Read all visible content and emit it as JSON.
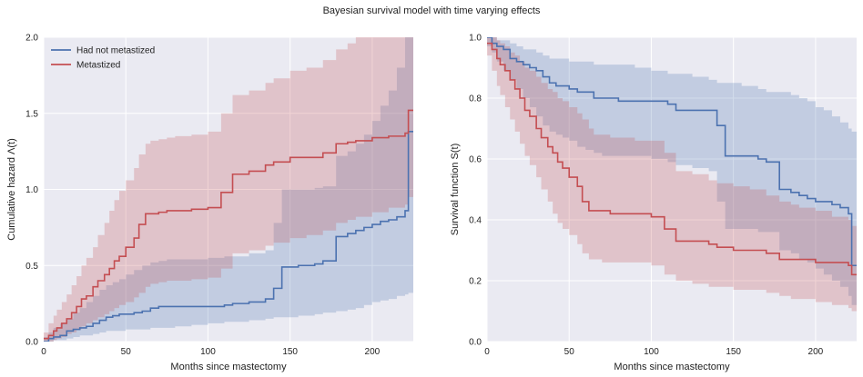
{
  "figure": {
    "title": "Bayesian survival model with time varying effects"
  },
  "colors": {
    "background": "#EAEAF2",
    "grid": "#FFFFFF",
    "blue": "#4C72B0",
    "red": "#C44E52"
  },
  "chart_data": [
    {
      "type": "line",
      "drawstyle": "steps-post",
      "title": "",
      "xlabel": "Months since mastectomy",
      "ylabel": "Cumulative hazard Λ(t)",
      "xlim": [
        0,
        225
      ],
      "ylim": [
        0,
        2.0
      ],
      "xticks": [
        0,
        50,
        100,
        150,
        200
      ],
      "yticks": [
        0.0,
        0.5,
        1.0,
        1.5,
        2.0
      ],
      "ytick_labels": [
        "0.0",
        "0.5",
        "1.0",
        "1.5",
        "2.0"
      ],
      "grid": true,
      "legend": {
        "location": "top-left",
        "entries": [
          "Had not metastized",
          "Metastized"
        ]
      },
      "series": [
        {
          "name": "Had not metastized",
          "color": "#4C72B0",
          "x": [
            0,
            3,
            6,
            10,
            14,
            18,
            22,
            26,
            30,
            34,
            38,
            42,
            46,
            50,
            55,
            60,
            65,
            70,
            75,
            80,
            90,
            100,
            110,
            115,
            125,
            135,
            140,
            145,
            155,
            165,
            170,
            178,
            185,
            190,
            195,
            200,
            205,
            210,
            215,
            220,
            222,
            225
          ],
          "y": [
            0.0,
            0.02,
            0.03,
            0.04,
            0.07,
            0.08,
            0.09,
            0.1,
            0.12,
            0.14,
            0.16,
            0.17,
            0.18,
            0.18,
            0.19,
            0.2,
            0.22,
            0.23,
            0.23,
            0.23,
            0.23,
            0.23,
            0.24,
            0.25,
            0.26,
            0.28,
            0.35,
            0.49,
            0.5,
            0.51,
            0.53,
            0.69,
            0.71,
            0.73,
            0.75,
            0.77,
            0.79,
            0.8,
            0.82,
            0.86,
            1.38,
            1.38
          ],
          "ci_lower": [
            0.0,
            0.0,
            0.01,
            0.01,
            0.02,
            0.03,
            0.04,
            0.04,
            0.05,
            0.06,
            0.07,
            0.07,
            0.07,
            0.08,
            0.08,
            0.08,
            0.09,
            0.09,
            0.09,
            0.1,
            0.11,
            0.12,
            0.13,
            0.13,
            0.14,
            0.15,
            0.16,
            0.16,
            0.17,
            0.18,
            0.19,
            0.2,
            0.21,
            0.22,
            0.24,
            0.26,
            0.27,
            0.28,
            0.3,
            0.31,
            0.32,
            0.33
          ],
          "ci_upper": [
            0.03,
            0.06,
            0.09,
            0.12,
            0.15,
            0.19,
            0.22,
            0.26,
            0.3,
            0.34,
            0.37,
            0.39,
            0.41,
            0.44,
            0.47,
            0.5,
            0.52,
            0.53,
            0.54,
            0.54,
            0.54,
            0.55,
            0.56,
            0.56,
            0.58,
            0.6,
            0.78,
            1.0,
            1.0,
            1.01,
            1.02,
            1.22,
            1.25,
            1.3,
            1.36,
            1.45,
            1.55,
            1.65,
            1.8,
            2.0,
            2.0,
            2.0
          ]
        },
        {
          "name": "Metastized",
          "color": "#C44E52",
          "x": [
            0,
            3,
            6,
            8,
            11,
            14,
            17,
            20,
            23,
            26,
            30,
            33,
            37,
            40,
            43,
            46,
            50,
            55,
            58,
            62,
            65,
            70,
            75,
            80,
            90,
            100,
            108,
            115,
            125,
            135,
            140,
            150,
            160,
            170,
            178,
            185,
            190,
            200,
            210,
            220,
            222,
            225
          ],
          "y": [
            0.02,
            0.04,
            0.07,
            0.09,
            0.12,
            0.15,
            0.19,
            0.23,
            0.28,
            0.3,
            0.36,
            0.4,
            0.44,
            0.48,
            0.53,
            0.56,
            0.62,
            0.68,
            0.77,
            0.84,
            0.84,
            0.85,
            0.86,
            0.86,
            0.87,
            0.88,
            0.98,
            1.1,
            1.12,
            1.16,
            1.18,
            1.21,
            1.21,
            1.24,
            1.3,
            1.31,
            1.32,
            1.34,
            1.35,
            1.37,
            1.52,
            1.52
          ],
          "ci_lower": [
            0.0,
            0.0,
            0.01,
            0.02,
            0.03,
            0.05,
            0.06,
            0.08,
            0.1,
            0.12,
            0.14,
            0.16,
            0.18,
            0.2,
            0.22,
            0.24,
            0.26,
            0.29,
            0.32,
            0.36,
            0.38,
            0.39,
            0.4,
            0.4,
            0.41,
            0.42,
            0.48,
            0.58,
            0.6,
            0.63,
            0.65,
            0.68,
            0.7,
            0.73,
            0.78,
            0.8,
            0.82,
            0.85,
            0.88,
            0.9,
            0.95,
            0.95
          ],
          "ci_upper": [
            0.06,
            0.12,
            0.17,
            0.21,
            0.26,
            0.31,
            0.37,
            0.43,
            0.5,
            0.55,
            0.62,
            0.7,
            0.78,
            0.86,
            0.93,
            0.99,
            1.06,
            1.14,
            1.23,
            1.3,
            1.32,
            1.33,
            1.34,
            1.35,
            1.36,
            1.38,
            1.5,
            1.62,
            1.65,
            1.7,
            1.73,
            1.78,
            1.8,
            1.85,
            1.92,
            1.96,
            2.0,
            2.0,
            2.0,
            2.0,
            2.0,
            2.0
          ]
        }
      ]
    },
    {
      "type": "line",
      "drawstyle": "steps-post",
      "title": "",
      "xlabel": "Months since mastectomy",
      "ylabel": "Survival function S(t)",
      "xlim": [
        0,
        225
      ],
      "ylim": [
        0,
        1.0
      ],
      "xticks": [
        0,
        50,
        100,
        150,
        200
      ],
      "yticks": [
        0.0,
        0.2,
        0.4,
        0.6,
        0.8,
        1.0
      ],
      "ytick_labels": [
        "0.0",
        "0.2",
        "0.4",
        "0.6",
        "0.8",
        "1.0"
      ],
      "grid": true,
      "legend": null,
      "series": [
        {
          "name": "Had not metastized",
          "color": "#4C72B0",
          "x": [
            0,
            3,
            6,
            10,
            14,
            18,
            22,
            26,
            30,
            34,
            38,
            42,
            46,
            50,
            55,
            60,
            65,
            70,
            75,
            80,
            90,
            100,
            110,
            115,
            125,
            135,
            140,
            145,
            155,
            165,
            170,
            178,
            185,
            190,
            195,
            200,
            205,
            210,
            215,
            220,
            222,
            225
          ],
          "y": [
            1.0,
            0.98,
            0.97,
            0.96,
            0.93,
            0.92,
            0.91,
            0.9,
            0.89,
            0.87,
            0.85,
            0.84,
            0.84,
            0.83,
            0.82,
            0.82,
            0.8,
            0.8,
            0.8,
            0.79,
            0.79,
            0.79,
            0.78,
            0.76,
            0.76,
            0.76,
            0.71,
            0.61,
            0.61,
            0.6,
            0.59,
            0.5,
            0.49,
            0.48,
            0.47,
            0.46,
            0.46,
            0.45,
            0.44,
            0.42,
            0.25,
            0.25
          ],
          "ci_lower": [
            0.97,
            0.95,
            0.92,
            0.89,
            0.86,
            0.83,
            0.8,
            0.77,
            0.74,
            0.71,
            0.69,
            0.68,
            0.67,
            0.66,
            0.64,
            0.63,
            0.62,
            0.61,
            0.61,
            0.61,
            0.61,
            0.6,
            0.59,
            0.58,
            0.57,
            0.56,
            0.46,
            0.37,
            0.37,
            0.36,
            0.36,
            0.3,
            0.29,
            0.27,
            0.26,
            0.24,
            0.22,
            0.2,
            0.18,
            0.15,
            0.12,
            0.1
          ],
          "ci_upper": [
            1.0,
            1.0,
            0.99,
            0.99,
            0.98,
            0.97,
            0.96,
            0.96,
            0.95,
            0.94,
            0.93,
            0.93,
            0.93,
            0.92,
            0.92,
            0.92,
            0.91,
            0.91,
            0.91,
            0.91,
            0.9,
            0.89,
            0.88,
            0.88,
            0.87,
            0.86,
            0.85,
            0.85,
            0.84,
            0.83,
            0.82,
            0.82,
            0.81,
            0.8,
            0.79,
            0.77,
            0.76,
            0.74,
            0.72,
            0.7,
            0.69,
            0.68
          ]
        },
        {
          "name": "Metastized",
          "color": "#C44E52",
          "x": [
            0,
            3,
            6,
            8,
            11,
            14,
            17,
            20,
            23,
            26,
            30,
            33,
            37,
            40,
            43,
            46,
            50,
            55,
            58,
            62,
            65,
            70,
            75,
            80,
            90,
            100,
            108,
            115,
            125,
            135,
            140,
            150,
            160,
            170,
            178,
            185,
            190,
            200,
            210,
            220,
            222,
            225
          ],
          "y": [
            0.98,
            0.96,
            0.93,
            0.91,
            0.89,
            0.86,
            0.83,
            0.8,
            0.76,
            0.74,
            0.7,
            0.67,
            0.64,
            0.62,
            0.59,
            0.57,
            0.54,
            0.51,
            0.46,
            0.43,
            0.43,
            0.43,
            0.42,
            0.42,
            0.42,
            0.41,
            0.37,
            0.33,
            0.33,
            0.32,
            0.31,
            0.3,
            0.3,
            0.29,
            0.27,
            0.27,
            0.27,
            0.26,
            0.26,
            0.25,
            0.22,
            0.22
          ],
          "ci_lower": [
            0.94,
            0.89,
            0.84,
            0.81,
            0.77,
            0.73,
            0.69,
            0.65,
            0.61,
            0.58,
            0.54,
            0.5,
            0.46,
            0.42,
            0.39,
            0.37,
            0.35,
            0.32,
            0.29,
            0.27,
            0.27,
            0.26,
            0.26,
            0.26,
            0.26,
            0.25,
            0.22,
            0.2,
            0.19,
            0.18,
            0.18,
            0.17,
            0.17,
            0.16,
            0.15,
            0.14,
            0.14,
            0.13,
            0.12,
            0.11,
            0.1,
            0.06
          ],
          "ci_upper": [
            1.0,
            1.0,
            0.99,
            0.98,
            0.97,
            0.95,
            0.94,
            0.92,
            0.9,
            0.89,
            0.87,
            0.85,
            0.83,
            0.82,
            0.8,
            0.79,
            0.77,
            0.75,
            0.73,
            0.7,
            0.68,
            0.68,
            0.67,
            0.67,
            0.66,
            0.66,
            0.62,
            0.56,
            0.55,
            0.53,
            0.52,
            0.51,
            0.5,
            0.48,
            0.46,
            0.45,
            0.44,
            0.43,
            0.41,
            0.4,
            0.38,
            0.38
          ]
        }
      ]
    }
  ]
}
